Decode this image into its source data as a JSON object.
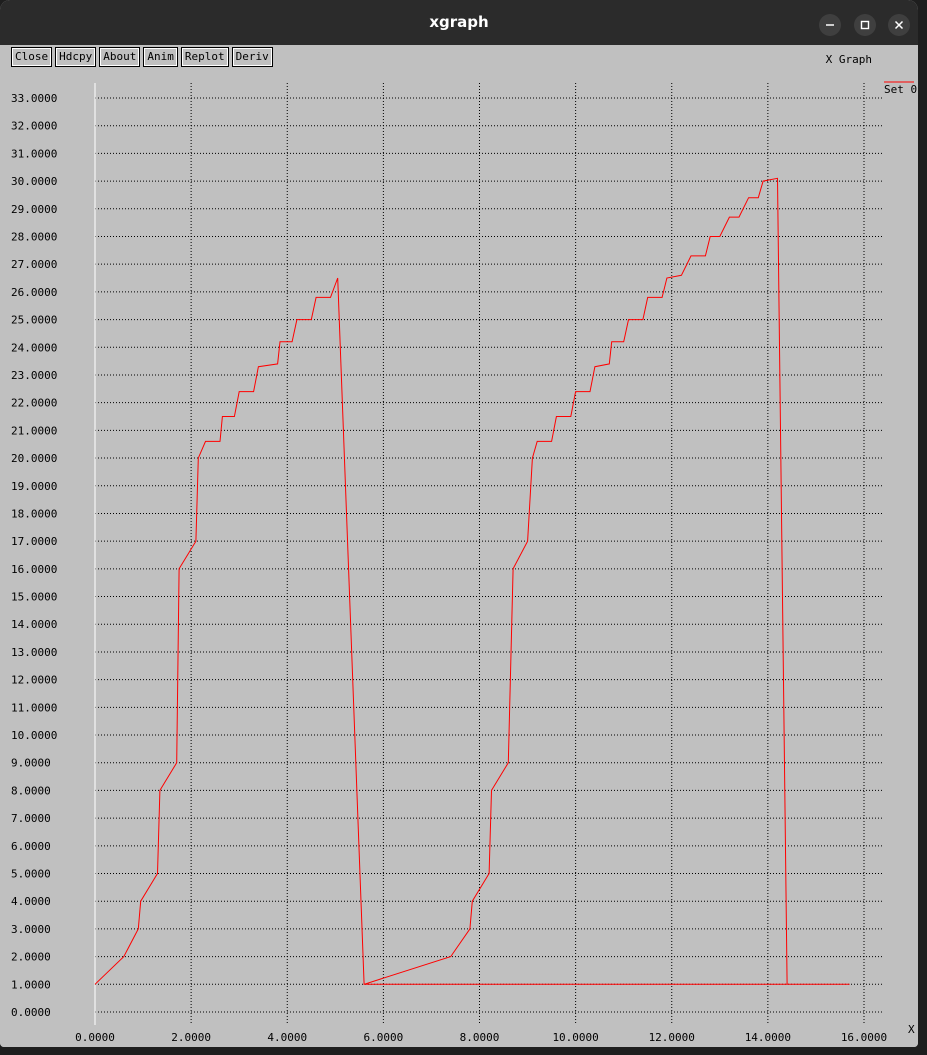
{
  "window": {
    "title": "xgraph",
    "controls": [
      "minimize-icon",
      "maximize-icon",
      "close-icon"
    ]
  },
  "toolbar": {
    "buttons": [
      "Close",
      "Hdcpy",
      "About",
      "Anim",
      "Replot",
      "Deriv"
    ]
  },
  "graph_title": "X Graph",
  "chart_data": {
    "type": "line",
    "title": "X Graph",
    "xlabel": "X",
    "ylabel": "",
    "xlim": [
      0,
      16000
    ],
    "ylim": [
      0,
      33000
    ],
    "grid": true,
    "legend_position": "top-right",
    "x_ticks": [
      "0.0000",
      "2.0000",
      "4.0000",
      "6.0000",
      "8.0000",
      "10.0000",
      "12.0000",
      "14.0000",
      "16.0000"
    ],
    "y_ticks": [
      "0.0000",
      "1.0000",
      "2.0000",
      "3.0000",
      "4.0000",
      "5.0000",
      "6.0000",
      "7.0000",
      "8.0000",
      "9.0000",
      "10.0000",
      "11.0000",
      "12.0000",
      "13.0000",
      "14.0000",
      "15.0000",
      "16.0000",
      "17.0000",
      "18.0000",
      "19.0000",
      "20.0000",
      "21.0000",
      "22.0000",
      "23.0000",
      "24.0000",
      "25.0000",
      "26.0000",
      "27.0000",
      "28.0000",
      "29.0000",
      "30.0000",
      "31.0000",
      "32.0000",
      "33.0000"
    ],
    "series": [
      {
        "name": "Set 0",
        "color": "#ff0000",
        "points": [
          [
            0,
            1000
          ],
          [
            0.6,
            2000
          ],
          [
            0.9,
            3000
          ],
          [
            0.95,
            4000
          ],
          [
            1.3,
            5000
          ],
          [
            1.35,
            8000
          ],
          [
            1.7,
            9000
          ],
          [
            1.75,
            16000
          ],
          [
            2.1,
            17000
          ],
          [
            2.15,
            20000
          ],
          [
            2.3,
            20600
          ],
          [
            2.6,
            20600
          ],
          [
            2.65,
            21500
          ],
          [
            2.9,
            21500
          ],
          [
            3.0,
            22400
          ],
          [
            3.3,
            22400
          ],
          [
            3.4,
            23300
          ],
          [
            3.8,
            23400
          ],
          [
            3.85,
            24200
          ],
          [
            4.1,
            24200
          ],
          [
            4.2,
            25000
          ],
          [
            4.5,
            25000
          ],
          [
            4.6,
            25800
          ],
          [
            4.9,
            25800
          ],
          [
            5.05,
            26500
          ],
          [
            5.6,
            1000
          ],
          [
            7.4,
            2000
          ],
          [
            7.8,
            3000
          ],
          [
            7.85,
            4000
          ],
          [
            8.2,
            5000
          ],
          [
            8.25,
            8000
          ],
          [
            8.6,
            9000
          ],
          [
            8.7,
            16000
          ],
          [
            9.0,
            17000
          ],
          [
            9.1,
            20000
          ],
          [
            9.2,
            20600
          ],
          [
            9.5,
            20600
          ],
          [
            9.6,
            21500
          ],
          [
            9.9,
            21500
          ],
          [
            10.0,
            22400
          ],
          [
            10.3,
            22400
          ],
          [
            10.4,
            23300
          ],
          [
            10.7,
            23400
          ],
          [
            10.75,
            24200
          ],
          [
            11.0,
            24200
          ],
          [
            11.1,
            25000
          ],
          [
            11.4,
            25000
          ],
          [
            11.5,
            25800
          ],
          [
            11.8,
            25800
          ],
          [
            11.9,
            26500
          ],
          [
            12.2,
            26600
          ],
          [
            12.4,
            27300
          ],
          [
            12.7,
            27300
          ],
          [
            12.8,
            28000
          ],
          [
            13.0,
            28000
          ],
          [
            13.2,
            28700
          ],
          [
            13.4,
            28700
          ],
          [
            13.6,
            29400
          ],
          [
            13.8,
            29400
          ],
          [
            13.9,
            30000
          ],
          [
            14.2,
            30100
          ],
          [
            14.4,
            1000
          ],
          [
            5.6,
            1000
          ],
          [
            15.7,
            1000
          ]
        ]
      }
    ]
  },
  "x_axis_label": "X",
  "legend": {
    "label": "Set 0"
  }
}
